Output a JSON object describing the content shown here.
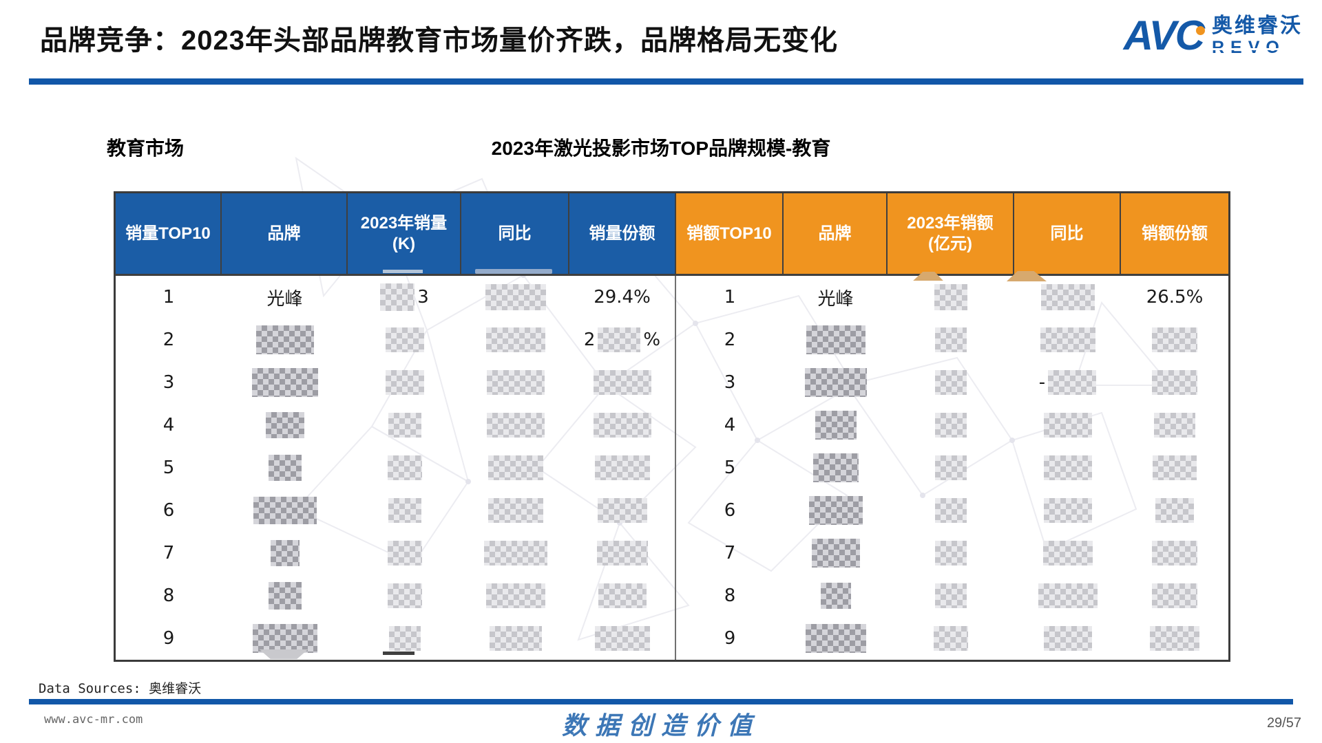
{
  "header": {
    "title": "品牌竞争：2023年头部品牌教育市场量价齐跌，品牌格局无变化",
    "logo": {
      "avc": "AVC",
      "cn": "奥维睿沃",
      "revo": "REVO"
    }
  },
  "section": {
    "market_label": "教育市场",
    "table_title": "2023年激光投影市场TOP品牌规模-教育"
  },
  "colors": {
    "blue_header": "#1B5DA6",
    "orange_header": "#F0941F",
    "accent_blue": "#1157A8",
    "slogan_blue": "#3D77B6"
  },
  "table": {
    "columns": [
      {
        "label": "销量TOP10",
        "group": "blue"
      },
      {
        "label": "品牌",
        "group": "blue"
      },
      {
        "label": "2023年销量\n(K)",
        "group": "blue"
      },
      {
        "label": "同比",
        "group": "blue"
      },
      {
        "label": "销量份额",
        "group": "blue"
      },
      {
        "label": "销额TOP10",
        "group": "orange"
      },
      {
        "label": "品牌",
        "group": "orange"
      },
      {
        "label": "2023年销额\n(亿元)",
        "group": "orange"
      },
      {
        "label": "同比",
        "group": "orange"
      },
      {
        "label": "销额份额",
        "group": "orange"
      }
    ],
    "rows": [
      [
        {
          "t": "1"
        },
        {
          "t": "光峰"
        },
        {
          "b": [
            50,
            40
          ],
          "post": "3"
        },
        {
          "b": [
            88,
            38
          ]
        },
        {
          "t": "29.4%"
        },
        {
          "t": "1"
        },
        {
          "t": "光峰"
        },
        {
          "b": [
            48,
            38
          ]
        },
        {
          "b": [
            78,
            38
          ]
        },
        {
          "t": "26.5%"
        }
      ],
      [
        {
          "t": "2"
        },
        {
          "b": [
            84,
            42
          ],
          "d": 1
        },
        {
          "b": [
            56,
            36
          ]
        },
        {
          "b": [
            86,
            36
          ]
        },
        {
          "pre": "2",
          "b": [
            62,
            36
          ],
          "post": "%"
        },
        {
          "t": "2"
        },
        {
          "b": [
            86,
            42
          ],
          "d": 1
        },
        {
          "b": [
            46,
            36
          ]
        },
        {
          "b": [
            80,
            36
          ]
        },
        {
          "b": [
            66,
            36
          ]
        }
      ],
      [
        {
          "t": "3"
        },
        {
          "b": [
            96,
            42
          ],
          "d": 1
        },
        {
          "b": [
            56,
            36
          ]
        },
        {
          "b": [
            84,
            36
          ]
        },
        {
          "b": [
            84,
            36
          ]
        },
        {
          "t": "3"
        },
        {
          "b": [
            90,
            42
          ],
          "d": 1
        },
        {
          "b": [
            46,
            36
          ]
        },
        {
          "pre": "-",
          "b": [
            70,
            36
          ]
        },
        {
          "b": [
            66,
            36
          ]
        }
      ],
      [
        {
          "t": "4"
        },
        {
          "b": [
            56,
            38
          ],
          "d": 1
        },
        {
          "b": [
            48,
            36
          ]
        },
        {
          "b": [
            84,
            36
          ]
        },
        {
          "b": [
            84,
            36
          ]
        },
        {
          "t": "4"
        },
        {
          "b": [
            60,
            42
          ],
          "d": 1
        },
        {
          "b": [
            46,
            36
          ]
        },
        {
          "b": [
            70,
            36
          ]
        },
        {
          "b": [
            60,
            36
          ]
        }
      ],
      [
        {
          "t": "5"
        },
        {
          "b": [
            48,
            38
          ],
          "d": 1
        },
        {
          "b": [
            50,
            36
          ]
        },
        {
          "b": [
            80,
            36
          ]
        },
        {
          "b": [
            80,
            36
          ]
        },
        {
          "t": "5"
        },
        {
          "b": [
            66,
            42
          ],
          "d": 1
        },
        {
          "b": [
            46,
            36
          ]
        },
        {
          "b": [
            70,
            36
          ]
        },
        {
          "b": [
            64,
            36
          ]
        }
      ],
      [
        {
          "t": "6"
        },
        {
          "b": [
            92,
            40
          ],
          "d": 1
        },
        {
          "b": [
            48,
            36
          ]
        },
        {
          "b": [
            80,
            36
          ]
        },
        {
          "b": [
            72,
            36
          ]
        },
        {
          "t": "6"
        },
        {
          "b": [
            78,
            42
          ],
          "d": 1
        },
        {
          "b": [
            46,
            36
          ]
        },
        {
          "b": [
            70,
            36
          ]
        },
        {
          "b": [
            56,
            36
          ]
        }
      ],
      [
        {
          "t": "7"
        },
        {
          "b": [
            42,
            38
          ],
          "d": 1
        },
        {
          "b": [
            50,
            36
          ]
        },
        {
          "b": [
            92,
            36
          ]
        },
        {
          "b": [
            74,
            36
          ]
        },
        {
          "t": "7"
        },
        {
          "b": [
            70,
            42
          ],
          "d": 1
        },
        {
          "b": [
            46,
            36
          ]
        },
        {
          "b": [
            72,
            36
          ]
        },
        {
          "b": [
            66,
            36
          ]
        }
      ],
      [
        {
          "t": "8"
        },
        {
          "b": [
            48,
            40
          ],
          "d": 1
        },
        {
          "b": [
            50,
            36
          ]
        },
        {
          "b": [
            86,
            36
          ]
        },
        {
          "b": [
            70,
            36
          ]
        },
        {
          "t": "8"
        },
        {
          "b": [
            44,
            38
          ],
          "d": 1
        },
        {
          "b": [
            46,
            36
          ]
        },
        {
          "b": [
            86,
            36
          ]
        },
        {
          "b": [
            66,
            36
          ]
        }
      ],
      [
        {
          "t": "9"
        },
        {
          "b": [
            94,
            42
          ],
          "d": 1
        },
        {
          "b": [
            46,
            36
          ]
        },
        {
          "b": [
            76,
            36
          ]
        },
        {
          "b": [
            80,
            36
          ]
        },
        {
          "t": "9"
        },
        {
          "b": [
            88,
            42
          ],
          "d": 1
        },
        {
          "b": [
            50,
            36
          ]
        },
        {
          "b": [
            70,
            36
          ]
        },
        {
          "b": [
            72,
            36
          ]
        }
      ]
    ]
  },
  "footer": {
    "data_sources": "Data Sources: 奥维睿沃",
    "url": "www.avc-mr.com",
    "slogan": "数据创造价值",
    "page": "29/57"
  }
}
